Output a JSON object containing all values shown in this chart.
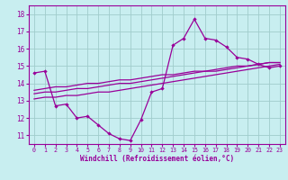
{
  "xlabel": "Windchill (Refroidissement éolien,°C)",
  "bg_color": "#c8eef0",
  "line_color": "#990099",
  "grid_color": "#a0cccc",
  "x": [
    0,
    1,
    2,
    3,
    4,
    5,
    6,
    7,
    8,
    9,
    10,
    11,
    12,
    13,
    14,
    15,
    16,
    17,
    18,
    19,
    20,
    21,
    22,
    23
  ],
  "y_main": [
    14.6,
    14.7,
    12.7,
    12.8,
    12.0,
    12.1,
    11.6,
    11.1,
    10.8,
    10.7,
    11.9,
    13.5,
    13.7,
    16.2,
    16.6,
    17.7,
    16.6,
    16.5,
    16.1,
    15.5,
    15.4,
    15.1,
    14.9,
    15.0
  ],
  "y_trend1": [
    13.1,
    13.2,
    13.2,
    13.3,
    13.3,
    13.4,
    13.5,
    13.5,
    13.6,
    13.7,
    13.8,
    13.9,
    14.0,
    14.1,
    14.2,
    14.3,
    14.4,
    14.5,
    14.6,
    14.7,
    14.8,
    14.9,
    15.0,
    15.1
  ],
  "y_trend2": [
    13.4,
    13.5,
    13.5,
    13.6,
    13.7,
    13.7,
    13.8,
    13.9,
    14.0,
    14.0,
    14.1,
    14.2,
    14.3,
    14.4,
    14.5,
    14.6,
    14.7,
    14.7,
    14.8,
    14.9,
    15.0,
    15.1,
    15.2,
    15.2
  ],
  "y_trend3": [
    13.6,
    13.7,
    13.8,
    13.8,
    13.9,
    14.0,
    14.0,
    14.1,
    14.2,
    14.2,
    14.3,
    14.4,
    14.5,
    14.5,
    14.6,
    14.7,
    14.7,
    14.8,
    14.9,
    15.0,
    15.0,
    15.1,
    15.2,
    15.2
  ],
  "ylim": [
    10.5,
    18.5
  ],
  "xlim": [
    -0.5,
    23.5
  ],
  "yticks": [
    11,
    12,
    13,
    14,
    15,
    16,
    17,
    18
  ],
  "xticks": [
    0,
    1,
    2,
    3,
    4,
    5,
    6,
    7,
    8,
    9,
    10,
    11,
    12,
    13,
    14,
    15,
    16,
    17,
    18,
    19,
    20,
    21,
    22,
    23
  ]
}
